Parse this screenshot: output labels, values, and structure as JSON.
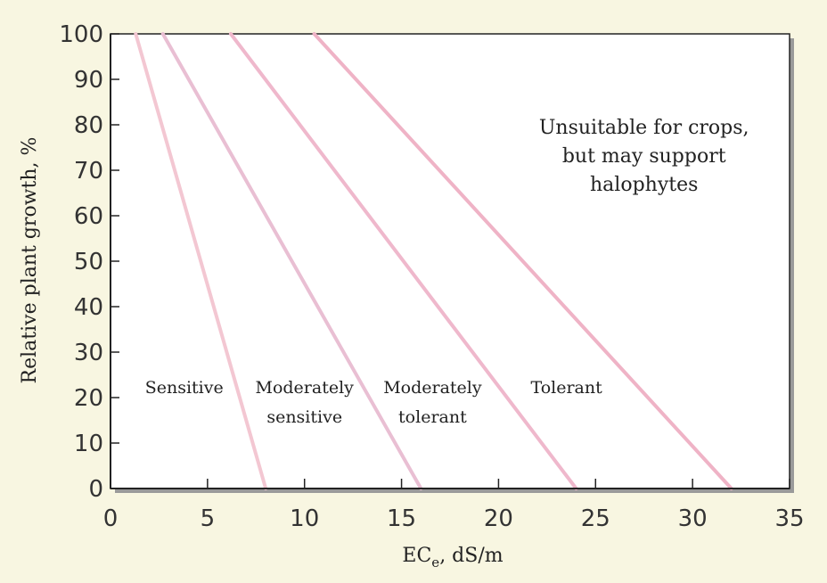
{
  "chart_data": {
    "type": "line",
    "title": "",
    "xlabel_main": "EC",
    "xlabel_sub": "e",
    "xlabel_rest": ", dS/m",
    "ylabel": "Relative plant growth, %",
    "xlim": [
      0,
      35
    ],
    "ylim": [
      0,
      100
    ],
    "x_ticks": [
      0,
      5,
      10,
      15,
      20,
      25,
      30,
      35
    ],
    "y_ticks": [
      0,
      10,
      20,
      30,
      40,
      50,
      60,
      70,
      80,
      90,
      100
    ],
    "grid": false,
    "series": [
      {
        "x": [
          1.3,
          8.0
        ],
        "y": [
          100,
          0
        ],
        "color": "#f3c7d2"
      },
      {
        "x": [
          2.7,
          16.0
        ],
        "y": [
          100,
          0
        ],
        "color": "#e9bfd3"
      },
      {
        "x": [
          6.2,
          24.0
        ],
        "y": [
          100,
          0
        ],
        "color": "#efb8cc"
      },
      {
        "x": [
          10.5,
          32.0
        ],
        "y": [
          100,
          0
        ],
        "color": "#efb3c6"
      }
    ],
    "zone_labels": [
      {
        "lines": [
          "Sensitive"
        ],
        "x": 3.8,
        "y": 21
      },
      {
        "lines": [
          "Moderately",
          "sensitive"
        ],
        "x": 10.0,
        "y": 21
      },
      {
        "lines": [
          "Moderately",
          "tolerant"
        ],
        "x": 16.6,
        "y": 21
      },
      {
        "lines": [
          "Tolerant"
        ],
        "x": 23.5,
        "y": 21
      }
    ],
    "annotation": {
      "lines": [
        "Unsuitable for crops,",
        "but may support",
        "halophytes"
      ],
      "x": 27.5,
      "y": 78
    }
  }
}
